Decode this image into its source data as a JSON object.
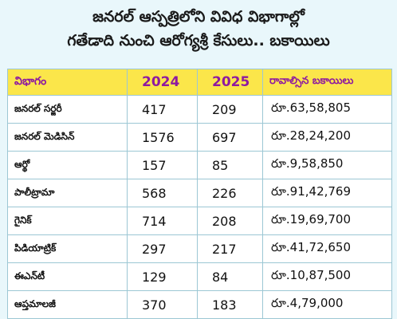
{
  "title": {
    "line1": "జనరల్ ఆస్పత్రిలోని వివిధ విభాగాల్లో",
    "line2": "గతేడాది నుంచి ఆరోగ్యశ్రీ కేసులు.. బకాయిలు"
  },
  "chart_data": {
    "type": "table",
    "columns": [
      "విభాగం",
      "2024",
      "2025",
      "రావాల్సిన బకాయిలు"
    ],
    "rows": [
      [
        "జనరల్ సర్జరీ",
        "417",
        "209",
        "రూ.63,58,805"
      ],
      [
        "జనరల్ మెడిసిన్",
        "1576",
        "697",
        "రూ.28,24,200"
      ],
      [
        "ఆర్థో",
        "157",
        "85",
        "రూ.9,58,850"
      ],
      [
        "పాలీట్రామా",
        "568",
        "226",
        "రూ.91,42,769"
      ],
      [
        "గైనిక్",
        "714",
        "208",
        "రూ.19,69,700"
      ],
      [
        "పిడియాట్రిక్",
        "297",
        "217",
        "రూ.41,72,650"
      ],
      [
        "ఈఎన్‌టీ",
        "129",
        "84",
        "రూ.10,87,500"
      ],
      [
        "ఆప్తమాలజీ",
        "370",
        "183",
        "రూ.4,79,000"
      ]
    ]
  },
  "colors": {
    "background": "#e9f7fb",
    "header_bg": "#fbe64a",
    "header_text": "#8e1aa0",
    "grid": "#9cc7d4"
  }
}
